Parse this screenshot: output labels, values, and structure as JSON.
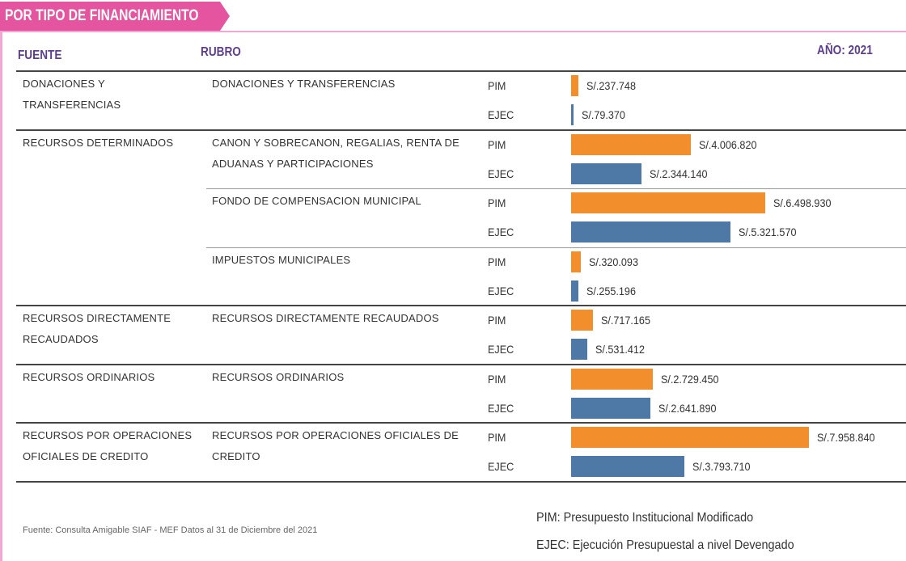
{
  "header": {
    "title": "POR TIPO DE FINANCIAMIENTO",
    "col_fuente": "FUENTE",
    "col_rubro": "RUBRO",
    "year": "AÑO: 2021"
  },
  "pim_label": "PIM",
  "ejec_label": "EJEC",
  "pim_color": "#f28e2b",
  "ejec_color": "#4e79a7",
  "groups": [
    {
      "fuente": "DONACIONES Y TRANSFERENCIAS",
      "rubros": [
        {
          "rubro": "DONACIONES Y TRANSFERENCIAS",
          "pim": 237748,
          "ejec": 79370,
          "pim_label": "S/.237.748",
          "ejec_label": "S/.79.370"
        }
      ]
    },
    {
      "fuente": "RECURSOS DETERMINADOS",
      "rubros": [
        {
          "rubro": "CANON Y SOBRECANON, REGALIAS, RENTA DE ADUANAS Y PARTICIPACIONES",
          "pim": 4006820,
          "ejec": 2344140,
          "pim_label": "S/.4.006.820",
          "ejec_label": "S/.2.344.140"
        },
        {
          "rubro": "FONDO DE COMPENSACION MUNICIPAL",
          "pim": 6498930,
          "ejec": 5321570,
          "pim_label": "S/.6.498.930",
          "ejec_label": "S/.5.321.570"
        },
        {
          "rubro": "IMPUESTOS MUNICIPALES",
          "pim": 320093,
          "ejec": 255196,
          "pim_label": "S/.320.093",
          "ejec_label": "S/.255.196"
        }
      ]
    },
    {
      "fuente": "RECURSOS DIRECTAMENTE RECAUDADOS",
      "rubros": [
        {
          "rubro": "RECURSOS DIRECTAMENTE RECAUDADOS",
          "pim": 717165,
          "ejec": 531412,
          "pim_label": "S/.717.165",
          "ejec_label": "S/.531.412"
        }
      ]
    },
    {
      "fuente": "RECURSOS ORDINARIOS",
      "rubros": [
        {
          "rubro": "RECURSOS ORDINARIOS",
          "pim": 2729450,
          "ejec": 2641890,
          "pim_label": "S/.2.729.450",
          "ejec_label": "S/.2.641.890"
        }
      ]
    },
    {
      "fuente": "RECURSOS POR OPERACIONES OFICIALES DE CREDITO",
      "rubros": [
        {
          "rubro": "RECURSOS POR OPERACIONES OFICIALES DE CREDITO",
          "pim": 7958840,
          "ejec": 3793710,
          "pim_label": "S/.7.958.840",
          "ejec_label": "S/.3.793.710"
        }
      ]
    }
  ],
  "footer": {
    "source": "Fuente: Consulta Amigable SIAF - MEF Datos al 31 de Diciembre del 2021",
    "legend": [
      "PIM: Presupuesto Institucional Modificado",
      "EJEC: Ejecución Presupuestal a nivel Devengado"
    ]
  }
}
